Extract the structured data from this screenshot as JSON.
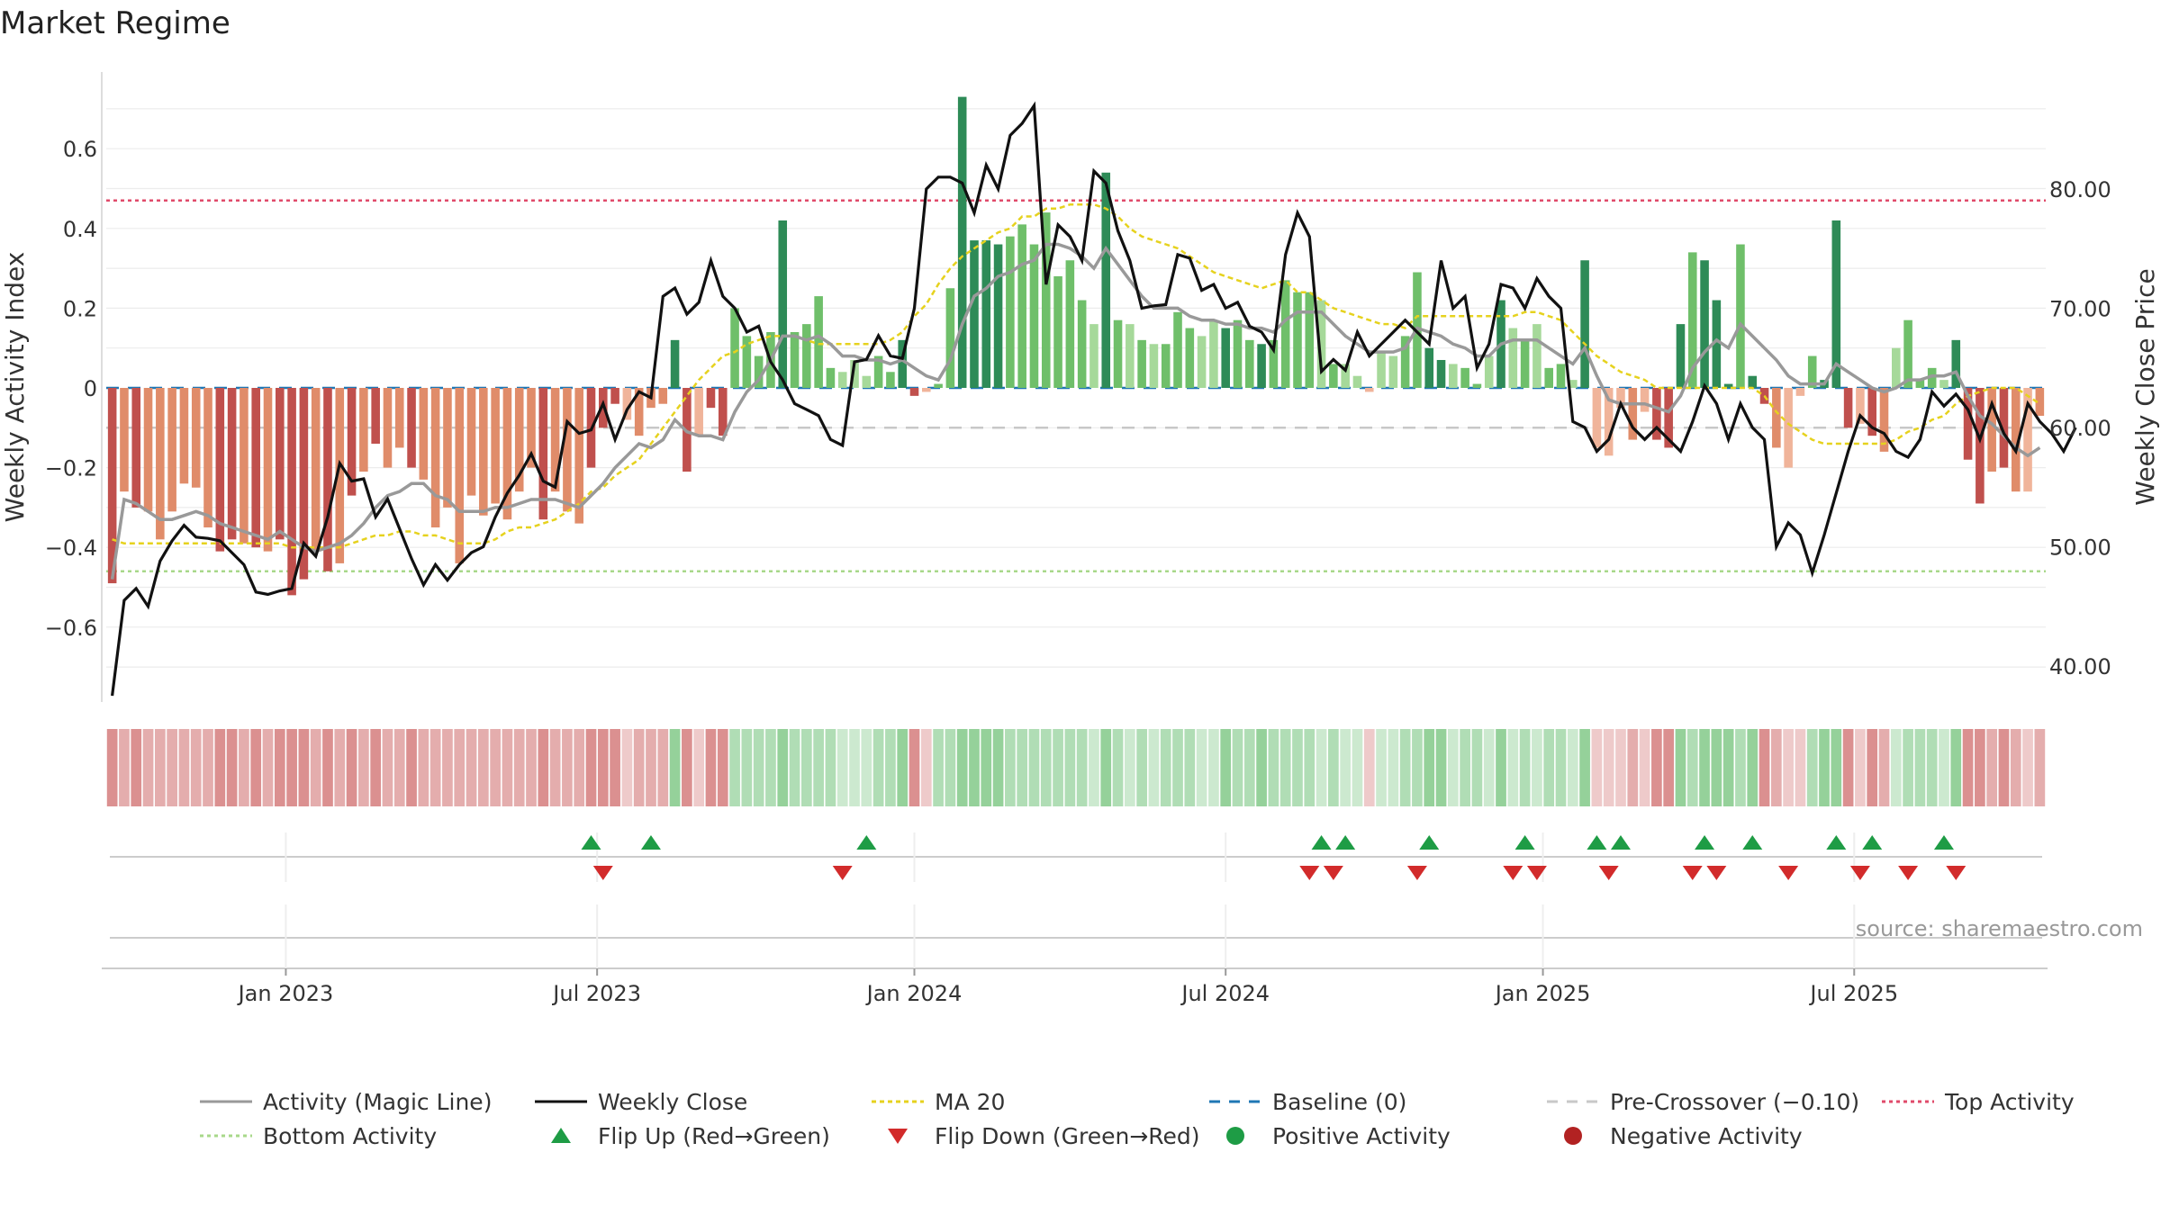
{
  "chart_data": {
    "type": "bar",
    "title": "Market Regime",
    "ylabel": "Weekly Activity Index",
    "ylabel_right": "Weekly Close Price",
    "source": "source: sharemaestro.com",
    "ylim": [
      -0.78,
      0.78
    ],
    "ylim_right": [
      35.0,
      88.0
    ],
    "yticks": [
      {
        "v": 0.6,
        "label": "0.6"
      },
      {
        "v": 0.4,
        "label": "0.4"
      },
      {
        "v": 0.2,
        "label": "0.2"
      },
      {
        "v": 0,
        "label": "0"
      },
      {
        "v": -0.2,
        "label": "−0.2"
      },
      {
        "v": -0.4,
        "label": "−0.4"
      },
      {
        "v": -0.6,
        "label": "−0.6"
      }
    ],
    "yticks_right": [
      {
        "v": 80,
        "label": "80.00"
      },
      {
        "v": 70,
        "label": "70.00"
      },
      {
        "v": 60,
        "label": "60.00"
      },
      {
        "v": 50,
        "label": "50.00"
      },
      {
        "v": 40,
        "label": "40.00"
      }
    ],
    "xticks": [
      {
        "i": 14.5,
        "label": "Jan 2023"
      },
      {
        "i": 40.5,
        "label": "Jul 2023"
      },
      {
        "i": 67,
        "label": "Jan 2024"
      },
      {
        "i": 93,
        "label": "Jul 2024"
      },
      {
        "i": 119.5,
        "label": "Jan 2025"
      },
      {
        "i": 145.5,
        "label": "Jul 2025"
      }
    ],
    "top_activity": 0.47,
    "bottom_activity": -0.46,
    "pre_crossover": -0.1,
    "baseline": 0,
    "activity": [
      -0.49,
      -0.26,
      -0.3,
      -0.31,
      -0.38,
      -0.31,
      -0.24,
      -0.25,
      -0.35,
      -0.41,
      -0.38,
      -0.39,
      -0.4,
      -0.41,
      -0.38,
      -0.52,
      -0.48,
      -0.41,
      -0.46,
      -0.44,
      -0.27,
      -0.21,
      -0.14,
      -0.2,
      -0.15,
      -0.2,
      -0.23,
      -0.35,
      -0.3,
      -0.44,
      -0.27,
      -0.32,
      -0.29,
      -0.33,
      -0.26,
      -0.2,
      -0.33,
      -0.26,
      -0.31,
      -0.34,
      -0.2,
      -0.1,
      -0.04,
      -0.08,
      -0.12,
      -0.05,
      -0.04,
      0.12,
      -0.21,
      -0.12,
      -0.05,
      -0.12,
      0.2,
      0.13,
      0.08,
      0.14,
      0.42,
      0.14,
      0.16,
      0.23,
      0.05,
      0.04,
      0.07,
      0.03,
      0.08,
      0.04,
      0.12,
      -0.02,
      -0.01,
      0.01,
      0.25,
      0.73,
      0.37,
      0.37,
      0.36,
      0.38,
      0.41,
      0.36,
      0.44,
      0.28,
      0.32,
      0.22,
      0.16,
      0.54,
      0.17,
      0.16,
      0.12,
      0.11,
      0.11,
      0.19,
      0.15,
      0.13,
      0.17,
      0.15,
      0.17,
      0.12,
      0.11,
      0.12,
      0.27,
      0.24,
      0.24,
      0.22,
      0.06,
      0.06,
      0.03,
      -0.01,
      0.09,
      0.08,
      0.13,
      0.29,
      0.1,
      0.07,
      0.06,
      0.05,
      0.01,
      0.08,
      0.22,
      0.15,
      0.12,
      0.16,
      0.05,
      0.06,
      0.02,
      0.32,
      -0.15,
      -0.17,
      -0.05,
      -0.13,
      -0.06,
      -0.13,
      -0.15,
      0.16,
      0.34,
      0.32,
      0.22,
      0.01,
      0.36,
      0.03,
      -0.04,
      -0.15,
      -0.2,
      -0.02,
      0.08,
      0.02,
      0.42,
      -0.1,
      -0.09,
      -0.12,
      -0.16,
      0.1,
      0.17,
      0.02,
      0.05,
      0.02,
      0.12,
      -0.18,
      -0.29,
      -0.21,
      -0.2,
      -0.26,
      -0.26,
      -0.07
    ],
    "activity_shades": [
      "s",
      "m",
      "s",
      "m",
      "m",
      "m",
      "m",
      "m",
      "m",
      "s",
      "s",
      "m",
      "s",
      "m",
      "s",
      "s",
      "s",
      "m",
      "s",
      "m",
      "s",
      "m",
      "s",
      "m",
      "m",
      "s",
      "m",
      "m",
      "m",
      "m",
      "m",
      "m",
      "m",
      "m",
      "m",
      "m",
      "s",
      "m",
      "m",
      "m",
      "s",
      "s",
      "s",
      "w",
      "m",
      "m",
      "m",
      "s",
      "s",
      "w",
      "s",
      "s",
      "m",
      "m",
      "m",
      "m",
      "s",
      "m",
      "m",
      "m",
      "m",
      "w",
      "w",
      "w",
      "m",
      "m",
      "s",
      "s",
      "w",
      "m",
      "m",
      "s",
      "s",
      "s",
      "s",
      "m",
      "m",
      "m",
      "m",
      "m",
      "m",
      "m",
      "w",
      "s",
      "m",
      "w",
      "m",
      "w",
      "m",
      "m",
      "m",
      "w",
      "w",
      "s",
      "m",
      "m",
      "s",
      "m",
      "m",
      "m",
      "m",
      "w",
      "m",
      "w",
      "w",
      "w",
      "w",
      "w",
      "m",
      "m",
      "s",
      "s",
      "w",
      "m",
      "m",
      "w",
      "s",
      "w",
      "m",
      "w",
      "m",
      "m",
      "w",
      "s",
      "w",
      "w",
      "w",
      "m",
      "w",
      "s",
      "s",
      "s",
      "m",
      "s",
      "s",
      "s",
      "m",
      "s",
      "s",
      "m",
      "w",
      "w",
      "m",
      "s",
      "s",
      "s",
      "w",
      "s",
      "m",
      "w",
      "m",
      "m",
      "m",
      "w",
      "s",
      "s",
      "s",
      "m",
      "s",
      "m",
      "w"
    ],
    "magic_line": [
      -0.48,
      -0.28,
      -0.29,
      -0.31,
      -0.33,
      -0.33,
      -0.32,
      -0.31,
      -0.32,
      -0.34,
      -0.35,
      -0.36,
      -0.37,
      -0.38,
      -0.36,
      -0.38,
      -0.4,
      -0.41,
      -0.4,
      -0.39,
      -0.37,
      -0.34,
      -0.3,
      -0.27,
      -0.26,
      -0.24,
      -0.24,
      -0.27,
      -0.28,
      -0.31,
      -0.31,
      -0.31,
      -0.3,
      -0.3,
      -0.29,
      -0.28,
      -0.28,
      -0.28,
      -0.29,
      -0.3,
      -0.27,
      -0.24,
      -0.2,
      -0.17,
      -0.14,
      -0.15,
      -0.13,
      -0.08,
      -0.11,
      -0.12,
      -0.12,
      -0.13,
      -0.06,
      -0.01,
      0.02,
      0.07,
      0.13,
      0.13,
      0.12,
      0.13,
      0.11,
      0.08,
      0.08,
      0.07,
      0.07,
      0.06,
      0.07,
      0.05,
      0.03,
      0.02,
      0.07,
      0.16,
      0.23,
      0.25,
      0.28,
      0.29,
      0.31,
      0.32,
      0.36,
      0.36,
      0.35,
      0.33,
      0.3,
      0.35,
      0.31,
      0.27,
      0.23,
      0.2,
      0.2,
      0.2,
      0.18,
      0.17,
      0.17,
      0.16,
      0.16,
      0.15,
      0.15,
      0.14,
      0.17,
      0.19,
      0.19,
      0.19,
      0.16,
      0.13,
      0.11,
      0.09,
      0.09,
      0.09,
      0.1,
      0.15,
      0.14,
      0.13,
      0.11,
      0.1,
      0.08,
      0.08,
      0.11,
      0.12,
      0.12,
      0.12,
      0.1,
      0.08,
      0.06,
      0.1,
      0.03,
      -0.03,
      -0.04,
      -0.04,
      -0.04,
      -0.05,
      -0.06,
      -0.02,
      0.05,
      0.09,
      0.12,
      0.1,
      0.16,
      0.13,
      0.1,
      0.07,
      0.03,
      0.01,
      0.01,
      0.01,
      0.06,
      0.04,
      0.02,
      0.0,
      -0.01,
      0.0,
      0.02,
      0.02,
      0.03,
      0.03,
      0.04,
      -0.02,
      -0.07,
      -0.09,
      -0.12,
      -0.15,
      -0.17,
      -0.15
    ],
    "close": [
      37.5,
      45.5,
      46.5,
      45,
      48.8,
      50.5,
      51.8,
      50.8,
      50.7,
      50.5,
      49.5,
      48.5,
      46.2,
      46.0,
      46.3,
      46.5,
      50.3,
      49.2,
      52.5,
      57.0,
      55.5,
      55.7,
      52.5,
      54.0,
      51.5,
      49.0,
      46.8,
      48.5,
      47.2,
      48.5,
      49.5,
      50.0,
      52.5,
      54.5,
      56.0,
      57.8,
      55.5,
      55.0,
      60.5,
      59.5,
      59.8,
      62.0,
      59.0,
      61.5,
      63.0,
      62.5,
      71.0,
      71.7,
      69.5,
      70.5,
      74.0,
      71.0,
      70.0,
      68.0,
      68.5,
      65.5,
      64.0,
      62.0,
      61.5,
      61.0,
      59.0,
      58.5,
      65.5,
      65.7,
      67.7,
      66.0,
      65.8,
      70.0,
      80.0,
      81.0,
      81.0,
      80.5,
      78.0,
      82.0,
      80.0,
      84.5,
      85.5,
      87.0,
      72.0,
      77.0,
      76.0,
      74.0,
      81.5,
      80.5,
      76.5,
      74.0,
      70.0,
      70.2,
      70.3,
      74.5,
      74.2,
      71.5,
      72.0,
      70.0,
      70.5,
      68.5,
      68.0,
      66.5,
      74.5,
      78.0,
      76.0,
      64.7,
      65.7,
      64.8,
      68.0,
      66.0,
      67.0,
      68.0,
      69.0,
      68.0,
      67.0,
      74.0,
      70.0,
      71.0,
      65.0,
      67.0,
      72.0,
      71.7,
      70.0,
      72.5,
      71.0,
      70.0,
      60.5,
      60.0,
      58.0,
      59.0,
      62.0,
      60.0,
      59.0,
      60.0,
      59.0,
      58.0,
      60.5,
      63.5,
      62.0,
      59.0,
      62.0,
      60.0,
      59.0,
      50.0,
      52.0,
      51.0,
      47.8,
      51.0,
      54.5,
      58.0,
      61.0,
      60.0,
      59.5,
      58.0,
      57.5,
      59.0,
      63.0,
      61.8,
      62.8,
      61.5,
      59.0,
      62.0,
      59.5,
      58.0,
      62.0,
      60.5,
      59.5,
      58.0,
      60.0
    ],
    "ma20": [
      -0.38,
      -0.39,
      -0.39,
      -0.39,
      -0.39,
      -0.39,
      -0.39,
      -0.39,
      -0.39,
      -0.39,
      -0.39,
      -0.39,
      -0.39,
      -0.39,
      -0.39,
      -0.4,
      -0.4,
      -0.4,
      -0.4,
      -0.4,
      -0.39,
      -0.38,
      -0.37,
      -0.37,
      -0.36,
      -0.36,
      -0.37,
      -0.37,
      -0.38,
      -0.39,
      -0.39,
      -0.39,
      -0.38,
      -0.36,
      -0.35,
      -0.35,
      -0.34,
      -0.33,
      -0.31,
      -0.29,
      -0.26,
      -0.25,
      -0.22,
      -0.2,
      -0.18,
      -0.14,
      -0.1,
      -0.06,
      -0.02,
      0.02,
      0.05,
      0.08,
      0.09,
      0.11,
      0.12,
      0.13,
      0.13,
      0.13,
      0.12,
      0.11,
      0.11,
      0.11,
      0.11,
      0.11,
      0.11,
      0.12,
      0.14,
      0.18,
      0.21,
      0.26,
      0.3,
      0.33,
      0.35,
      0.37,
      0.39,
      0.4,
      0.43,
      0.43,
      0.45,
      0.45,
      0.46,
      0.46,
      0.46,
      0.45,
      0.43,
      0.4,
      0.38,
      0.37,
      0.36,
      0.35,
      0.33,
      0.31,
      0.29,
      0.28,
      0.27,
      0.26,
      0.25,
      0.26,
      0.27,
      0.24,
      0.24,
      0.22,
      0.2,
      0.19,
      0.18,
      0.17,
      0.16,
      0.16,
      0.15,
      0.18,
      0.18,
      0.18,
      0.18,
      0.18,
      0.18,
      0.18,
      0.18,
      0.18,
      0.19,
      0.19,
      0.18,
      0.17,
      0.14,
      0.11,
      0.08,
      0.06,
      0.04,
      0.03,
      0.02,
      0.0,
      0.0,
      0.0,
      0.0,
      0.0,
      0.0,
      0.0,
      0.0,
      0.0,
      -0.02,
      -0.06,
      -0.09,
      -0.11,
      -0.13,
      -0.14,
      -0.14,
      -0.14,
      -0.14,
      -0.14,
      -0.14,
      -0.13,
      -0.11,
      -0.1,
      -0.08,
      -0.07,
      -0.04,
      -0.02,
      -0.01,
      0.0,
      0.0,
      0.0,
      -0.02,
      -0.04
    ],
    "flip_up": [
      40,
      45,
      63,
      101,
      103,
      110,
      118,
      124,
      126,
      133,
      137,
      144,
      147,
      153
    ],
    "flip_down": [
      41,
      61,
      100,
      102,
      109,
      117,
      119,
      125,
      132,
      134,
      140,
      146,
      150,
      154
    ],
    "legend": [
      {
        "label": "Activity (Magic Line)",
        "kind": "line",
        "color": "#999999",
        "dash": ""
      },
      {
        "label": "Weekly Close",
        "kind": "line",
        "color": "#111111",
        "dash": ""
      },
      {
        "label": "MA 20",
        "kind": "line",
        "color": "#e6d21e",
        "dash": "5,4"
      },
      {
        "label": "Baseline (0)",
        "kind": "line",
        "color": "#1f77b4",
        "dash": "12,10"
      },
      {
        "label": "Pre-Crossover (−0.10)",
        "kind": "line",
        "color": "#c8c8c8",
        "dash": "12,10"
      },
      {
        "label": "Top Activity",
        "kind": "line",
        "color": "#e04a6a",
        "dash": "4,4"
      },
      {
        "label": "Bottom Activity",
        "kind": "line",
        "color": "#a8d88a",
        "dash": "4,4"
      },
      {
        "label": "Flip Up (Red→Green)",
        "kind": "tri-up",
        "color": "#1e9c45",
        "dash": ""
      },
      {
        "label": "Flip Down (Green→Red)",
        "kind": "tri-down",
        "color": "#d22b2b",
        "dash": ""
      },
      {
        "label": "Positive Activity",
        "kind": "dot",
        "color": "#1e9c45",
        "dash": ""
      },
      {
        "label": "Negative Activity",
        "kind": "dot",
        "color": "#b22222",
        "dash": ""
      }
    ],
    "colors": {
      "pos_strong": "#2e8b57",
      "pos_medium": "#6fbf6a",
      "pos_weak": "#a6d99a",
      "neg_strong": "#c0504d",
      "neg_medium": "#e08c6a",
      "neg_weak": "#f0b49a",
      "strip_pos": "#8fcf95",
      "strip_neg": "#d98a8a"
    }
  }
}
